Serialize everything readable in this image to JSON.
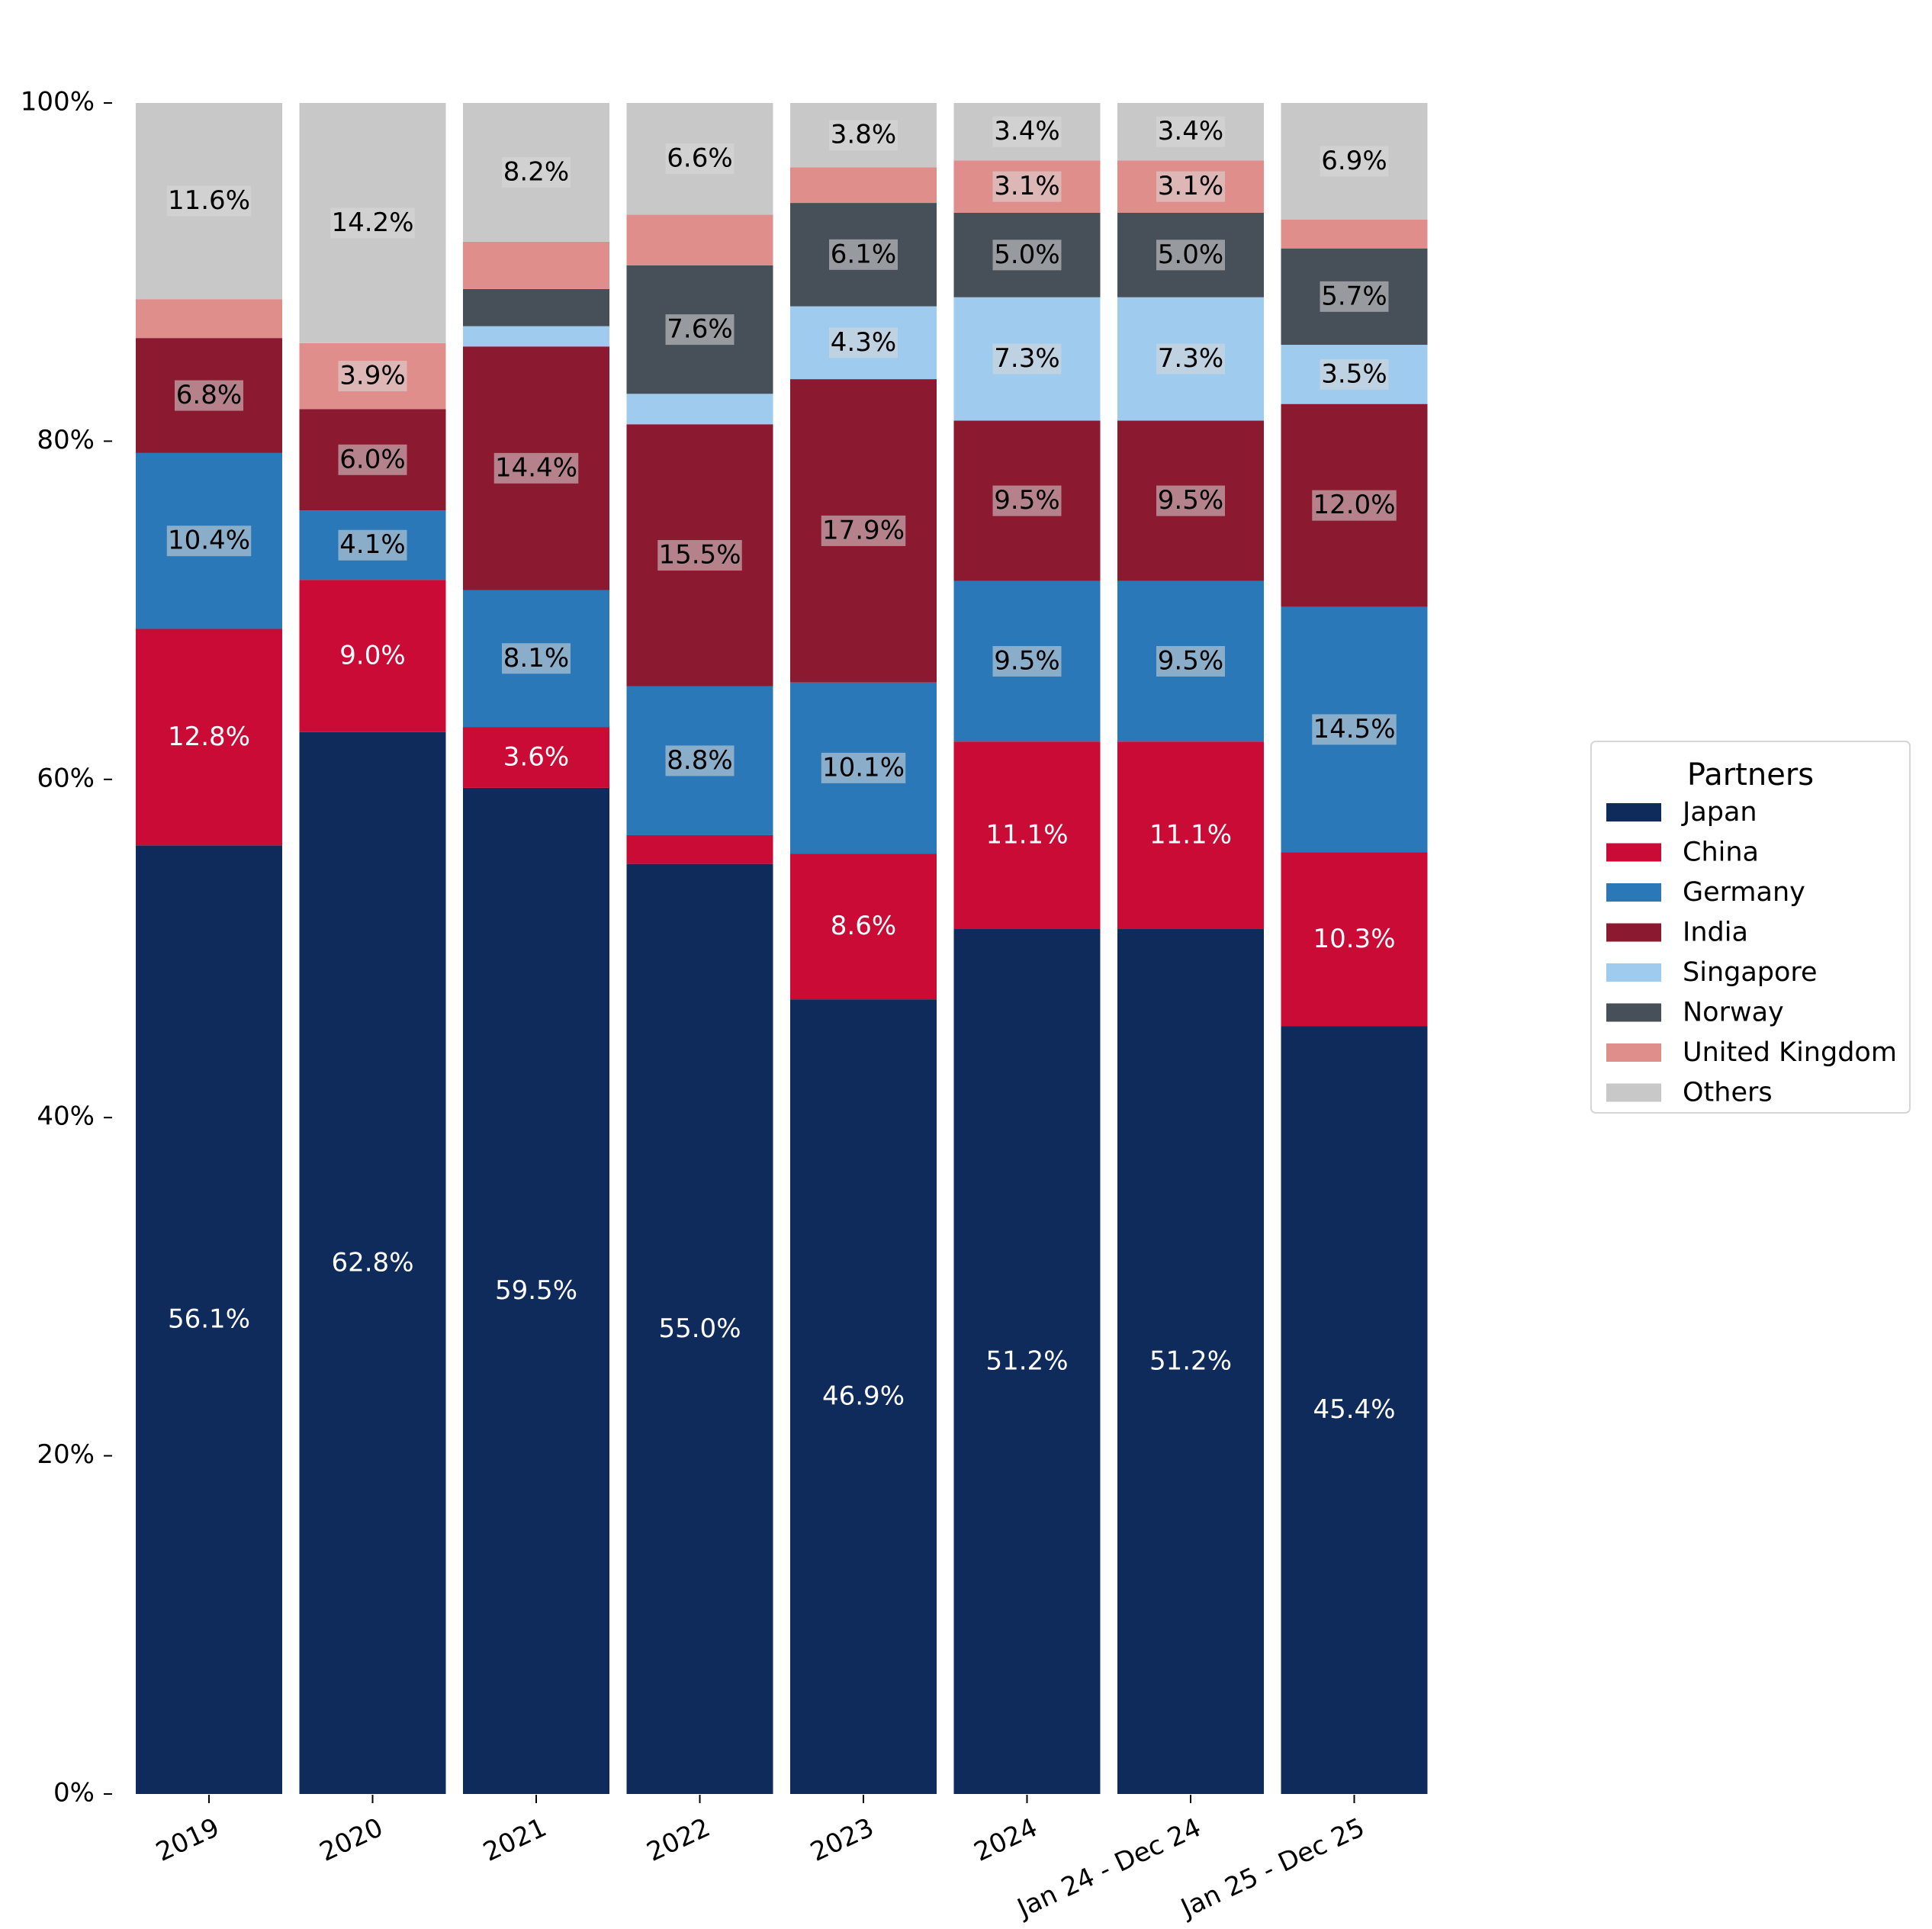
{
  "chart_data": {
    "type": "bar",
    "stacked": true,
    "normalized": true,
    "categories": [
      "2019",
      "2020",
      "2021",
      "2022",
      "2023",
      "2024",
      "Jan 24 - Dec 24",
      "Jan 25 - Dec 25"
    ],
    "ylim": [
      0,
      100
    ],
    "yticks": [
      "0%",
      "20%",
      "40%",
      "60%",
      "80%",
      "100%"
    ],
    "legend": {
      "title": "Partners",
      "placement": "center-right"
    },
    "grid": false,
    "series": [
      {
        "name": "Japan",
        "color": "#0f2b5c",
        "values": [
          56.1,
          62.8,
          59.5,
          55.0,
          46.9,
          51.2,
          51.2,
          45.4
        ],
        "labels": [
          "56.1%",
          "62.8%",
          "59.5%",
          "55.0%",
          "46.9%",
          "51.2%",
          "51.2%",
          "45.4%"
        ],
        "label_style": "plain-white"
      },
      {
        "name": "China",
        "color": "#c90b35",
        "values": [
          12.8,
          9.0,
          3.6,
          1.7,
          8.6,
          11.1,
          11.1,
          10.3
        ],
        "labels": [
          "12.8%",
          "9.0%",
          "3.6%",
          "",
          "8.6%",
          "11.1%",
          "11.1%",
          "10.3%"
        ],
        "label_style": "plain-white"
      },
      {
        "name": "Germany",
        "color": "#2a78b8",
        "values": [
          10.4,
          4.1,
          8.1,
          8.8,
          10.1,
          9.5,
          9.5,
          14.5
        ],
        "labels": [
          "10.4%",
          "4.1%",
          "8.1%",
          "8.8%",
          "10.1%",
          "9.5%",
          "9.5%",
          "14.5%"
        ],
        "label_style": "boxed"
      },
      {
        "name": "India",
        "color": "#8b1a30",
        "values": [
          6.8,
          6.0,
          14.4,
          15.5,
          17.9,
          9.5,
          9.5,
          12.0
        ],
        "labels": [
          "6.8%",
          "6.0%",
          "14.4%",
          "15.5%",
          "17.9%",
          "9.5%",
          "9.5%",
          "12.0%"
        ],
        "label_style": "boxed"
      },
      {
        "name": "Singapore",
        "color": "#9ecbee",
        "values": [
          0,
          0,
          1.2,
          1.8,
          4.3,
          7.3,
          7.3,
          3.5
        ],
        "labels": [
          "",
          "",
          "",
          "",
          "4.3%",
          "7.3%",
          "7.3%",
          "3.5%"
        ],
        "label_style": "boxed"
      },
      {
        "name": "Norway",
        "color": "#474f59",
        "values": [
          0,
          0,
          2.2,
          7.6,
          6.1,
          5.0,
          5.0,
          5.7
        ],
        "labels": [
          "",
          "",
          "",
          "7.6%",
          "6.1%",
          "5.0%",
          "5.0%",
          "5.7%"
        ],
        "label_style": "boxed"
      },
      {
        "name": "United Kingdom",
        "color": "#e08e8c",
        "values": [
          2.3,
          3.9,
          2.8,
          3.0,
          2.1,
          3.1,
          3.1,
          1.7
        ],
        "labels": [
          "",
          "3.9%",
          "",
          "",
          "",
          "3.1%",
          "3.1%",
          ""
        ],
        "label_style": "boxed"
      },
      {
        "name": "Others",
        "color": "#c8c8c8",
        "values": [
          11.6,
          14.2,
          8.2,
          6.6,
          3.8,
          3.4,
          3.4,
          6.9
        ],
        "labels": [
          "11.6%",
          "14.2%",
          "8.2%",
          "6.6%",
          "3.8%",
          "3.4%",
          "3.4%",
          "6.9%"
        ],
        "label_style": "boxed"
      }
    ]
  }
}
